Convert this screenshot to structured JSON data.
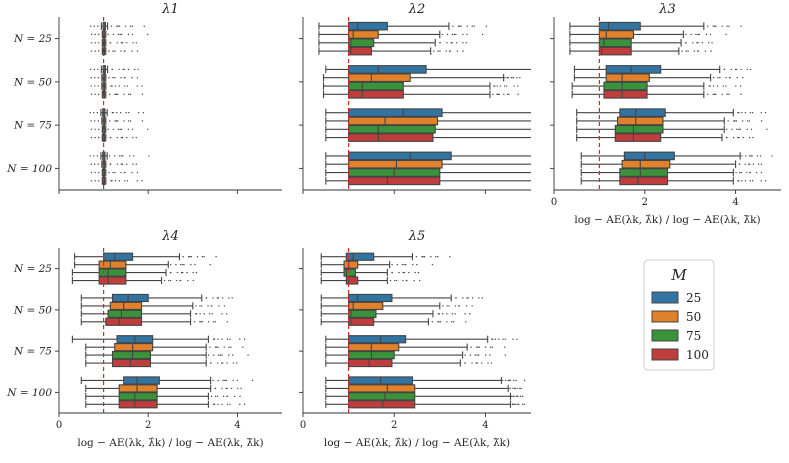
{
  "chart_data": {
    "type": "boxplot",
    "panels": [
      {
        "title": "λ1",
        "xlabel": "",
        "show_ticks": false,
        "xlim": [
          0,
          5
        ],
        "ref_line": 1,
        "data": [
          [
            [
              0.95,
              0.99,
              1.01,
              1.04,
              1.09
            ],
            [
              0.97,
              0.99,
              1.0,
              1.02,
              1.05
            ],
            [
              0.97,
              0.99,
              1.0,
              1.02,
              1.05
            ],
            [
              0.97,
              0.99,
              1.0,
              1.02,
              1.05
            ]
          ],
          [
            [
              0.95,
              0.99,
              1.01,
              1.04,
              1.09
            ],
            [
              0.96,
              0.99,
              1.0,
              1.02,
              1.05
            ],
            [
              0.96,
              0.99,
              1.0,
              1.02,
              1.05
            ],
            [
              0.97,
              0.99,
              1.0,
              1.02,
              1.05
            ]
          ],
          [
            [
              0.94,
              0.98,
              1.0,
              1.03,
              1.08
            ],
            [
              0.96,
              0.99,
              1.0,
              1.02,
              1.05
            ],
            [
              0.97,
              0.99,
              1.0,
              1.02,
              1.05
            ],
            [
              0.97,
              0.99,
              1.0,
              1.02,
              1.05
            ]
          ],
          [
            [
              0.94,
              0.98,
              1.0,
              1.03,
              1.08
            ],
            [
              0.96,
              0.99,
              1.0,
              1.02,
              1.05
            ],
            [
              0.97,
              0.99,
              1.0,
              1.02,
              1.05
            ],
            [
              0.97,
              0.99,
              1.0,
              1.02,
              1.05
            ]
          ]
        ]
      },
      {
        "title": "λ2",
        "xlabel": "",
        "show_ticks": false,
        "xlim": [
          0,
          5
        ],
        "ref_line": 1,
        "data": [
          [
            [
              0.35,
              1.0,
              1.2,
              1.85,
              3.2
            ],
            [
              0.35,
              1.0,
              1.1,
              1.65,
              3.0
            ],
            [
              0.35,
              1.0,
              1.05,
              1.55,
              2.9
            ],
            [
              0.35,
              1.0,
              1.05,
              1.5,
              2.8
            ]
          ],
          [
            [
              0.5,
              1.0,
              1.65,
              2.7,
              5.0
            ],
            [
              0.45,
              1.0,
              1.5,
              2.35,
              4.4
            ],
            [
              0.45,
              1.0,
              1.3,
              2.2,
              4.1
            ],
            [
              0.45,
              1.0,
              1.3,
              2.2,
              4.1
            ]
          ],
          [
            [
              0.5,
              1.0,
              2.2,
              3.05,
              5.0
            ],
            [
              0.5,
              1.0,
              1.8,
              2.95,
              5.0
            ],
            [
              0.5,
              1.0,
              1.65,
              2.9,
              5.0
            ],
            [
              0.5,
              1.0,
              1.65,
              2.85,
              5.0
            ]
          ],
          [
            [
              0.5,
              1.0,
              2.35,
              3.25,
              5.0
            ],
            [
              0.5,
              1.0,
              2.05,
              3.05,
              5.0
            ],
            [
              0.5,
              1.0,
              2.0,
              3.0,
              5.0
            ],
            [
              0.5,
              1.0,
              1.85,
              3.0,
              5.0
            ]
          ]
        ]
      },
      {
        "title": "λ3",
        "xlabel": "log − AE(λk, λ̂k) / log − AE(λk, λ̃k)",
        "show_ticks": true,
        "xlim": [
          0,
          5
        ],
        "ref_line": 1,
        "data": [
          [
            [
              0.35,
              1.0,
              1.2,
              1.9,
              3.3
            ],
            [
              0.35,
              1.0,
              1.15,
              1.75,
              2.85
            ],
            [
              0.35,
              1.0,
              1.1,
              1.7,
              2.8
            ],
            [
              0.35,
              1.0,
              1.05,
              1.7,
              2.75
            ]
          ],
          [
            [
              0.45,
              1.15,
              1.7,
              2.35,
              3.65
            ],
            [
              0.45,
              1.15,
              1.5,
              2.1,
              3.45
            ],
            [
              0.4,
              1.1,
              1.5,
              2.05,
              3.3
            ],
            [
              0.4,
              1.1,
              1.5,
              2.05,
              3.3
            ]
          ],
          [
            [
              0.5,
              1.45,
              1.8,
              2.45,
              3.95
            ],
            [
              0.5,
              1.4,
              1.8,
              2.4,
              3.75
            ],
            [
              0.5,
              1.35,
              1.75,
              2.4,
              3.75
            ],
            [
              0.5,
              1.35,
              1.75,
              2.35,
              3.7
            ]
          ],
          [
            [
              0.6,
              1.55,
              2.0,
              2.65,
              4.1
            ],
            [
              0.6,
              1.5,
              1.9,
              2.55,
              4.0
            ],
            [
              0.6,
              1.45,
              1.9,
              2.5,
              3.95
            ],
            [
              0.6,
              1.45,
              1.85,
              2.5,
              3.95
            ]
          ]
        ]
      },
      {
        "title": "λ4",
        "xlabel": "log − AE(λk, λ̂k) / log − AE(λk, λ̃k)",
        "show_ticks": true,
        "xlim": [
          0,
          5
        ],
        "ref_line": 1,
        "data": [
          [
            [
              0.35,
              1.0,
              1.25,
              1.65,
              2.7
            ],
            [
              0.35,
              0.9,
              1.15,
              1.5,
              2.45
            ],
            [
              0.3,
              0.9,
              1.1,
              1.5,
              2.4
            ],
            [
              0.3,
              0.9,
              1.1,
              1.5,
              2.3
            ]
          ],
          [
            [
              0.5,
              1.2,
              1.55,
              2.0,
              3.2
            ],
            [
              0.5,
              1.15,
              1.45,
              1.85,
              3.0
            ],
            [
              0.5,
              1.1,
              1.4,
              1.85,
              2.95
            ],
            [
              0.5,
              1.05,
              1.35,
              1.85,
              2.95
            ]
          ],
          [
            [
              0.3,
              1.3,
              1.7,
              2.1,
              3.35
            ],
            [
              0.6,
              1.25,
              1.65,
              2.1,
              3.3
            ],
            [
              0.6,
              1.2,
              1.65,
              2.05,
              3.3
            ],
            [
              0.6,
              1.2,
              1.6,
              2.05,
              3.3
            ]
          ],
          [
            [
              0.5,
              1.45,
              1.75,
              2.25,
              3.4
            ],
            [
              0.6,
              1.35,
              1.75,
              2.2,
              3.4
            ],
            [
              0.6,
              1.35,
              1.7,
              2.2,
              3.35
            ],
            [
              0.6,
              1.35,
              1.7,
              2.2,
              3.35
            ]
          ]
        ]
      },
      {
        "title": "λ5",
        "xlabel": "log − AE(λk, λ̂k) / log − AE(λk, λ̃k)",
        "show_ticks": true,
        "xlim": [
          0,
          5
        ],
        "ref_line": 1,
        "data": [
          [
            [
              0.4,
              0.95,
              1.1,
              1.55,
              2.4
            ],
            [
              0.4,
              0.9,
              1.0,
              1.2,
              1.9
            ],
            [
              0.4,
              0.9,
              0.95,
              1.15,
              1.85
            ],
            [
              0.4,
              0.95,
              1.0,
              1.2,
              1.85
            ]
          ],
          [
            [
              0.4,
              1.0,
              1.2,
              1.95,
              3.25
            ],
            [
              0.4,
              1.0,
              1.1,
              1.75,
              3.0
            ],
            [
              0.4,
              1.0,
              1.05,
              1.6,
              2.85
            ],
            [
              0.4,
              1.0,
              1.05,
              1.55,
              2.75
            ]
          ],
          [
            [
              0.5,
              1.0,
              1.7,
              2.25,
              4.05
            ],
            [
              0.5,
              1.0,
              1.5,
              2.1,
              3.6
            ],
            [
              0.5,
              1.0,
              1.5,
              2.0,
              3.5
            ],
            [
              0.5,
              1.0,
              1.45,
              1.95,
              3.45
            ]
          ],
          [
            [
              0.5,
              1.0,
              1.7,
              2.4,
              4.35
            ],
            [
              0.5,
              1.0,
              1.85,
              2.45,
              4.5
            ],
            [
              0.5,
              1.0,
              1.8,
              2.45,
              4.55
            ],
            [
              0.5,
              1.0,
              1.75,
              2.45,
              4.55
            ]
          ]
        ]
      }
    ],
    "rows": [
      "N = 25",
      "N = 50",
      "N = 75",
      "N = 100"
    ],
    "x_ticks": [
      0,
      2,
      4
    ],
    "legend": {
      "title": "M",
      "items": [
        {
          "label": "25",
          "color": "#3274a1"
        },
        {
          "label": "50",
          "color": "#e1812c"
        },
        {
          "label": "75",
          "color": "#3a923a"
        },
        {
          "label": "100",
          "color": "#c03d3e"
        }
      ]
    },
    "ref_line_color": "#d62728"
  }
}
